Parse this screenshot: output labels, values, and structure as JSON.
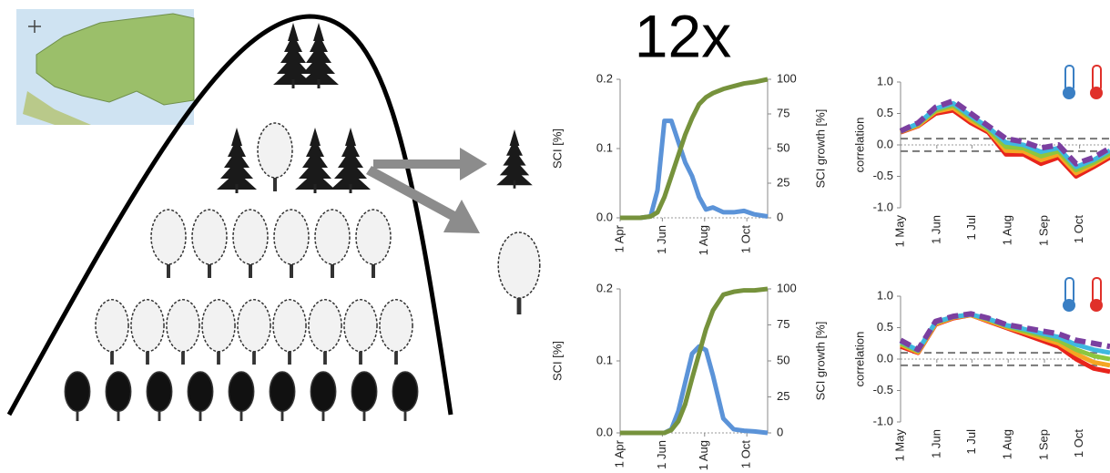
{
  "label": "12x",
  "chart_data": [
    {
      "type": "line",
      "ylabel": "SCI [%]",
      "y2label": "SCI growth [%]",
      "x": [
        91,
        105,
        120,
        135,
        145,
        155,
        165,
        175,
        185,
        195,
        205,
        215,
        225,
        240,
        255,
        270,
        285,
        304
      ],
      "xlim": [
        91,
        304
      ],
      "xticks": [
        {
          "value": 91,
          "label": "1 Apr"
        },
        {
          "value": 152,
          "label": "1 Jun"
        },
        {
          "value": 213,
          "label": "1 Aug"
        },
        {
          "value": 274,
          "label": "1 Oct"
        }
      ],
      "ylim": [
        0,
        0.2
      ],
      "yticks": [
        {
          "value": 0,
          "label": "0.0"
        },
        0.1,
        0.2
      ],
      "y2lim": [
        0,
        100
      ],
      "y2ticks": [
        0,
        25,
        50,
        75,
        100
      ],
      "series": [
        {
          "color": "#5b93d8",
          "values": [
            0,
            0,
            0,
            0.002,
            0.04,
            0.14,
            0.14,
            0.11,
            0.08,
            0.06,
            0.03,
            0.012,
            0.015,
            0.008,
            0.008,
            0.01,
            0.005,
            0.002
          ]
        },
        {
          "color": "#76923c",
          "axis": "y2",
          "values": [
            0,
            0,
            0,
            1,
            4,
            15,
            30,
            45,
            60,
            72,
            82,
            87,
            90,
            93,
            95,
            97,
            98,
            100
          ]
        }
      ]
    },
    {
      "type": "line",
      "ylabel": "SCI [%]",
      "y2label": "SCI growth [%]",
      "x": [
        91,
        105,
        120,
        135,
        145,
        155,
        165,
        175,
        185,
        195,
        205,
        215,
        225,
        240,
        255,
        270,
        285,
        304
      ],
      "xlim": [
        91,
        304
      ],
      "xticks": [
        {
          "value": 91,
          "label": "1 Apr"
        },
        {
          "value": 152,
          "label": "1 Jun"
        },
        {
          "value": 213,
          "label": "1 Aug"
        },
        {
          "value": 274,
          "label": "1 Oct"
        }
      ],
      "ylim": [
        0,
        0.2
      ],
      "yticks": [
        {
          "value": 0,
          "label": "0.0"
        },
        0.1,
        0.2
      ],
      "y2lim": [
        0,
        100
      ],
      "y2ticks": [
        0,
        25,
        50,
        75,
        100
      ],
      "series": [
        {
          "color": "#5b93d8",
          "values": [
            0,
            0,
            0,
            0,
            0,
            0,
            0.005,
            0.03,
            0.07,
            0.11,
            0.12,
            0.115,
            0.08,
            0.02,
            0.005,
            0.003,
            0.002,
            0
          ]
        },
        {
          "color": "#76923c",
          "axis": "y2",
          "values": [
            0,
            0,
            0,
            0,
            0,
            0,
            2,
            8,
            20,
            38,
            55,
            72,
            85,
            96,
            98,
            99,
            99,
            100
          ]
        }
      ]
    },
    {
      "type": "line",
      "ylabel": "correlation",
      "x": [
        121,
        136,
        151,
        166,
        181,
        196,
        211,
        226,
        241,
        256,
        271,
        286,
        300
      ],
      "xlim": [
        121,
        300
      ],
      "xticks": [
        {
          "value": 121,
          "label": "1 May"
        },
        {
          "value": 152,
          "label": "1 Jun"
        },
        {
          "value": 182,
          "label": "1 Jul"
        },
        {
          "value": 213,
          "label": "1 Aug"
        },
        {
          "value": 244,
          "label": "1 Sep"
        },
        {
          "value": 274,
          "label": "1 Oct"
        }
      ],
      "ylim": [
        -1,
        1
      ],
      "yticks": [
        {
          "value": -1,
          "label": "-1.0"
        },
        -0.5,
        {
          "value": 0,
          "label": "0.0"
        },
        0.5,
        {
          "value": 1,
          "label": "1.0"
        }
      ],
      "hlines": [
        0.1,
        -0.1
      ],
      "series": [
        {
          "color": "#e8241c",
          "values": [
            0.2,
            0.3,
            0.5,
            0.55,
            0.35,
            0.2,
            -0.15,
            -0.15,
            -0.3,
            -0.2,
            -0.5,
            -0.35,
            -0.2
          ]
        },
        {
          "color": "#f5a623",
          "values": [
            0.21,
            0.31,
            0.53,
            0.59,
            0.39,
            0.23,
            -0.09,
            -0.1,
            -0.24,
            -0.15,
            -0.45,
            -0.31,
            -0.16
          ]
        },
        {
          "color": "#8cc63f",
          "values": [
            0.21,
            0.33,
            0.55,
            0.63,
            0.43,
            0.25,
            -0.03,
            -0.05,
            -0.18,
            -0.1,
            -0.4,
            -0.28,
            -0.13
          ]
        },
        {
          "color": "#3fb8e0",
          "values": [
            0.22,
            0.34,
            0.58,
            0.66,
            0.46,
            0.28,
            0.04,
            0,
            -0.11,
            -0.05,
            -0.35,
            -0.24,
            -0.09
          ]
        },
        {
          "color": "#7b3fa0",
          "dashed": true,
          "values": [
            0.22,
            0.35,
            0.6,
            0.7,
            0.5,
            0.3,
            0.1,
            0.05,
            -0.05,
            0.0,
            -0.3,
            -0.2,
            -0.05
          ]
        }
      ]
    },
    {
      "type": "line",
      "ylabel": "correlation",
      "x": [
        121,
        136,
        151,
        166,
        181,
        196,
        211,
        226,
        241,
        256,
        271,
        286,
        300
      ],
      "xlim": [
        121,
        300
      ],
      "xticks": [
        {
          "value": 121,
          "label": "1 May"
        },
        {
          "value": 152,
          "label": "1 Jun"
        },
        {
          "value": 182,
          "label": "1 Jul"
        },
        {
          "value": 213,
          "label": "1 Aug"
        },
        {
          "value": 244,
          "label": "1 Sep"
        },
        {
          "value": 274,
          "label": "1 Oct"
        }
      ],
      "ylim": [
        -1,
        1
      ],
      "yticks": [
        {
          "value": -1,
          "label": "-1.0"
        },
        -0.5,
        {
          "value": 0,
          "label": "0.0"
        },
        0.5,
        {
          "value": 1,
          "label": "1.0"
        }
      ],
      "hlines": [
        0.1,
        -0.1
      ],
      "series": [
        {
          "color": "#e8241c",
          "values": [
            0.2,
            0.1,
            0.55,
            0.65,
            0.7,
            0.6,
            0.5,
            0.4,
            0.3,
            0.2,
            0.0,
            -0.15,
            -0.2
          ]
        },
        {
          "color": "#f5a623",
          "values": [
            0.23,
            0.11,
            0.56,
            0.66,
            0.7,
            0.61,
            0.51,
            0.43,
            0.34,
            0.25,
            0.08,
            -0.05,
            -0.1
          ]
        },
        {
          "color": "#8cc63f",
          "values": [
            0.25,
            0.13,
            0.58,
            0.67,
            0.71,
            0.63,
            0.53,
            0.45,
            0.38,
            0.3,
            0.15,
            0.05,
            0
          ]
        },
        {
          "color": "#3fb8e0",
          "values": [
            0.28,
            0.14,
            0.59,
            0.67,
            0.71,
            0.64,
            0.54,
            0.48,
            0.41,
            0.35,
            0.23,
            0.15,
            0.1
          ]
        },
        {
          "color": "#7b3fa0",
          "dashed": true,
          "values": [
            0.3,
            0.15,
            0.6,
            0.68,
            0.72,
            0.65,
            0.55,
            0.5,
            0.45,
            0.4,
            0.3,
            0.25,
            0.2
          ]
        }
      ]
    }
  ]
}
